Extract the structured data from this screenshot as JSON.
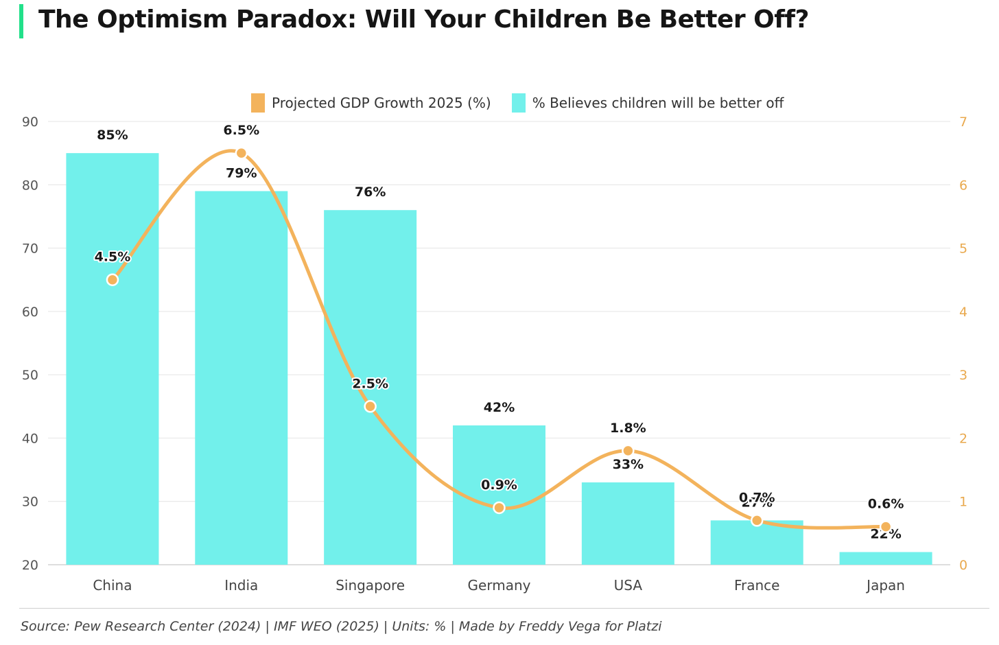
{
  "title": "The Optimism Paradox: Will Your Children Be Better Off?",
  "footer": "Source: Pew Research Center (2024) | IMF WEO (2025) | Units: % | Made by Freddy Vega for Platzi",
  "colors": {
    "bar": "#72f0eb",
    "line": "#f3b35c",
    "accent": "#22e08a",
    "right_axis": "#e9a94e"
  },
  "chart_data": {
    "type": "bar",
    "categories": [
      "China",
      "India",
      "Singapore",
      "Germany",
      "USA",
      "France",
      "Japan"
    ],
    "series": [
      {
        "name": "Projected GDP Growth 2025 (%)",
        "type": "line",
        "axis": "right",
        "values": [
          4.5,
          6.5,
          2.5,
          0.9,
          1.8,
          0.7,
          0.6
        ],
        "labels": [
          "4.5%",
          "6.5%",
          "2.5%",
          "0.9%",
          "1.8%",
          "0.7%",
          "0.6%"
        ]
      },
      {
        "name": "% Believes children will be better off",
        "type": "bar",
        "axis": "left",
        "values": [
          85,
          79,
          76,
          42,
          33,
          27,
          22
        ],
        "labels": [
          "85%",
          "79%",
          "76%",
          "42%",
          "33%",
          "27%",
          "22%"
        ]
      }
    ],
    "y_left": {
      "ylim": [
        20,
        90
      ],
      "ticks": [
        "20",
        "30",
        "40",
        "50",
        "60",
        "70",
        "80",
        "90"
      ]
    },
    "y_right": {
      "ylim": [
        0,
        7
      ],
      "ticks": [
        "0",
        "1",
        "2",
        "3",
        "4",
        "5",
        "6",
        "7"
      ]
    },
    "grid": true,
    "legend": "top-center"
  }
}
